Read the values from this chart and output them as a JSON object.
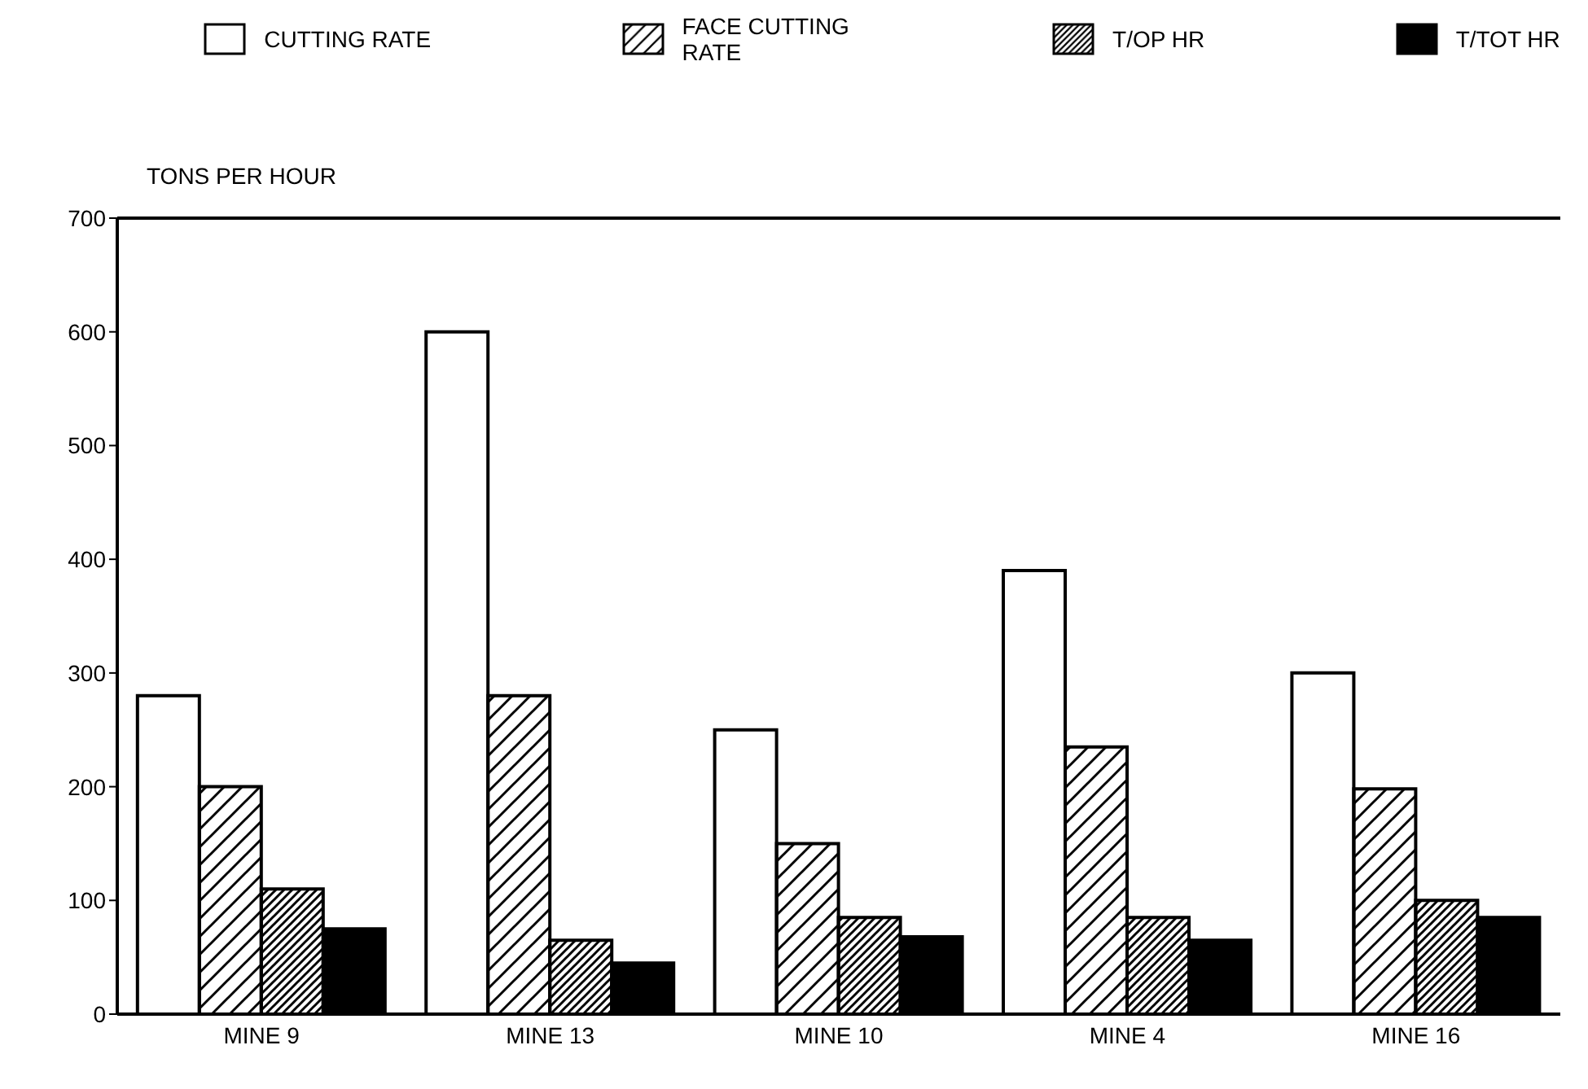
{
  "chart_data": {
    "type": "bar",
    "ylabel": "TONS PER HOUR",
    "categories": [
      "MINE 9",
      "MINE 13",
      "MINE 10",
      "MINE 4",
      "MINE 16"
    ],
    "series": [
      {
        "name": "CUTTING RATE",
        "color": "#ffffff",
        "values": [
          280,
          600,
          250,
          390,
          300
        ]
      },
      {
        "name": "FACE CUTTING RATE",
        "color": "#000000",
        "values": [
          200,
          280,
          150,
          235,
          198
        ]
      },
      {
        "name": "T/OP HR",
        "color": "#000000",
        "values": [
          110,
          65,
          85,
          85,
          100
        ]
      },
      {
        "name": "T/TOT HR",
        "color": "#000000",
        "values": [
          75,
          45,
          68,
          65,
          85
        ]
      }
    ],
    "ylim": [
      0,
      700
    ],
    "yticks": [
      0,
      100,
      200,
      300,
      400,
      500,
      600,
      700
    ],
    "legend": "top",
    "grid": false
  }
}
